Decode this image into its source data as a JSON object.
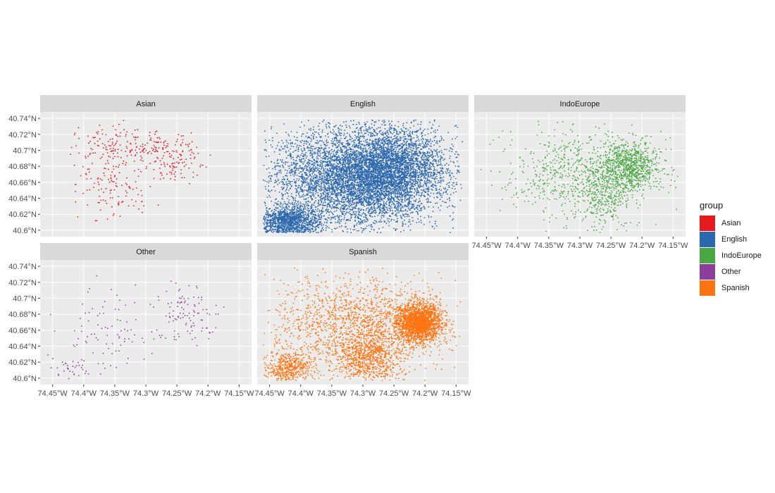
{
  "chart_data": {
    "type": "scatter",
    "subtype": "faceted point map",
    "facet_variable": "group",
    "x_ticks": [
      "74.45°W",
      "74.4°W",
      "74.35°W",
      "74.3°W",
      "74.25°W",
      "74.2°W",
      "74.15°W"
    ],
    "y_ticks": [
      "40.6°N",
      "40.62°N",
      "40.64°N",
      "40.66°N",
      "40.68°N",
      "40.7°N",
      "40.72°N",
      "40.74°N"
    ],
    "x_tick_values": [
      -74.45,
      -74.4,
      -74.35,
      -74.3,
      -74.25,
      -74.2,
      -74.15
    ],
    "y_tick_values": [
      40.6,
      40.62,
      40.64,
      40.66,
      40.68,
      40.7,
      40.72,
      40.74
    ],
    "xlim": [
      -74.47,
      -74.13
    ],
    "ylim": [
      40.592,
      40.748
    ],
    "grid": true,
    "legend": {
      "title": "group",
      "position": "right",
      "items": [
        {
          "label": "Asian",
          "color": "#e41a1c"
        },
        {
          "label": "English",
          "color": "#2c68ad"
        },
        {
          "label": "IndoEurope",
          "color": "#4aa843"
        },
        {
          "label": "Other",
          "color": "#8c3f9a"
        },
        {
          "label": "Spanish",
          "color": "#ff7412"
        }
      ]
    },
    "panels": [
      {
        "group": "Asian",
        "color": "#e41a1c",
        "approx_points": 420,
        "clusters": [
          {
            "lon": -74.36,
            "lat": 40.705,
            "sd_lon": 0.03,
            "sd_lat": 0.014,
            "weight": 0.3
          },
          {
            "lon": -74.28,
            "lat": 40.705,
            "sd_lon": 0.03,
            "sd_lat": 0.01,
            "weight": 0.25
          },
          {
            "lon": -74.25,
            "lat": 40.685,
            "sd_lon": 0.02,
            "sd_lat": 0.012,
            "weight": 0.2
          },
          {
            "lon": -74.35,
            "lat": 40.65,
            "sd_lon": 0.03,
            "sd_lat": 0.018,
            "weight": 0.25
          }
        ]
      },
      {
        "group": "English",
        "color": "#2c68ad",
        "approx_points": 9000,
        "clusters": [
          {
            "lon": -74.31,
            "lat": 40.665,
            "sd_lon": 0.065,
            "sd_lat": 0.03,
            "weight": 0.6
          },
          {
            "lon": -74.25,
            "lat": 40.68,
            "sd_lon": 0.04,
            "sd_lat": 0.025,
            "weight": 0.25
          },
          {
            "lon": -74.42,
            "lat": 40.61,
            "sd_lon": 0.025,
            "sd_lat": 0.01,
            "weight": 0.15
          }
        ]
      },
      {
        "group": "IndoEurope",
        "color": "#4aa843",
        "approx_points": 1800,
        "clusters": [
          {
            "lon": -74.22,
            "lat": 40.68,
            "sd_lon": 0.025,
            "sd_lat": 0.015,
            "weight": 0.45
          },
          {
            "lon": -74.3,
            "lat": 40.67,
            "sd_lon": 0.06,
            "sd_lat": 0.028,
            "weight": 0.4
          },
          {
            "lon": -74.26,
            "lat": 40.64,
            "sd_lon": 0.02,
            "sd_lat": 0.02,
            "weight": 0.15
          }
        ]
      },
      {
        "group": "Other",
        "color": "#8c3f9a",
        "approx_points": 230,
        "clusters": [
          {
            "lon": -74.23,
            "lat": 40.68,
            "sd_lon": 0.025,
            "sd_lat": 0.018,
            "weight": 0.45
          },
          {
            "lon": -74.36,
            "lat": 40.66,
            "sd_lon": 0.045,
            "sd_lat": 0.03,
            "weight": 0.4
          },
          {
            "lon": -74.42,
            "lat": 40.61,
            "sd_lon": 0.02,
            "sd_lat": 0.006,
            "weight": 0.15
          }
        ]
      },
      {
        "group": "Spanish",
        "color": "#ff7412",
        "approx_points": 5000,
        "clusters": [
          {
            "lon": -74.21,
            "lat": 40.67,
            "sd_lon": 0.018,
            "sd_lat": 0.012,
            "weight": 0.4
          },
          {
            "lon": -74.31,
            "lat": 40.665,
            "sd_lon": 0.07,
            "sd_lat": 0.03,
            "weight": 0.35
          },
          {
            "lon": -74.42,
            "lat": 40.612,
            "sd_lon": 0.018,
            "sd_lat": 0.01,
            "weight": 0.1
          },
          {
            "lon": -74.29,
            "lat": 40.625,
            "sd_lon": 0.025,
            "sd_lat": 0.015,
            "weight": 0.15
          }
        ]
      }
    ]
  }
}
